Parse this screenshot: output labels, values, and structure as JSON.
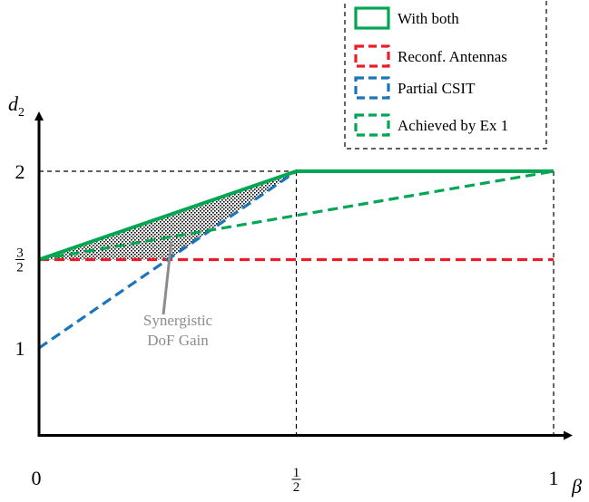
{
  "chart_data": {
    "type": "line",
    "xlabel": "β",
    "ylabel": "d",
    "ylabel_sub": "2",
    "xlim": [
      0,
      1
    ],
    "ylim": [
      0.5,
      2.2
    ],
    "x_ticks": [
      {
        "value": 0,
        "label": "0"
      },
      {
        "value": 0.5,
        "num": "1",
        "den": "2"
      },
      {
        "value": 1,
        "label": "1"
      }
    ],
    "y_ticks": [
      {
        "value": 1,
        "label": "1"
      },
      {
        "value": 1.5,
        "num": "3",
        "den": "2"
      },
      {
        "value": 2,
        "label": "2"
      }
    ],
    "series": [
      {
        "name": "With both",
        "color": "#00a651",
        "style": "solid",
        "x": [
          0,
          0.5,
          1
        ],
        "y": [
          1.5,
          2,
          2
        ]
      },
      {
        "name": "Reconf. Antennas",
        "color": "#ee1c25",
        "style": "dashed",
        "x": [
          0,
          1
        ],
        "y": [
          1.5,
          1.5
        ]
      },
      {
        "name": "Partial CSIT",
        "color": "#1a75bb",
        "style": "dashed",
        "x": [
          0,
          0.5,
          1
        ],
        "y": [
          1,
          2,
          2
        ]
      },
      {
        "name": "Achieved by Ex 1",
        "color": "#00a651",
        "style": "dashed",
        "x": [
          0,
          1
        ],
        "y": [
          1.5,
          2
        ]
      }
    ],
    "guide_lines": {
      "color": "#000000",
      "style": "dashed"
    },
    "shaded_region": {
      "pattern": "dotted",
      "x": [
        0,
        0.5,
        0.5,
        0.25,
        0
      ],
      "y": [
        1.5,
        2,
        2,
        1.5,
        1.5
      ]
    },
    "annotation": {
      "lines": [
        "Synergistic",
        "DoF Gain"
      ],
      "color": "#8c8c8c",
      "point_x": 0.257,
      "point_y": 1.6
    },
    "legend": {
      "position": "top-right",
      "border": "dashed"
    }
  }
}
